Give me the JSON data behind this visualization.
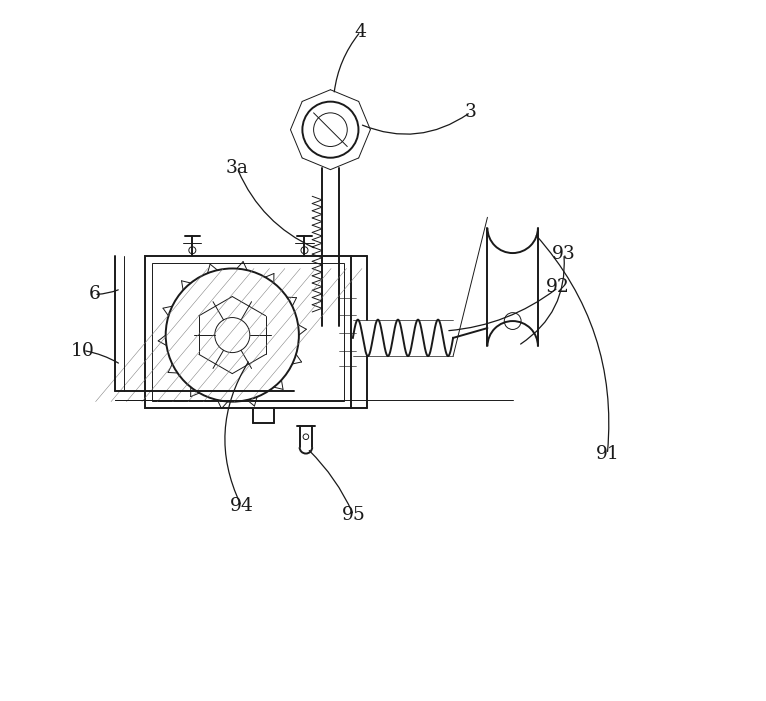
{
  "bg_color": "#ffffff",
  "line_color": "#1a1a1a",
  "label_color": "#1a1a1a",
  "figsize": [
    7.66,
    7.01
  ],
  "dpi": 100
}
